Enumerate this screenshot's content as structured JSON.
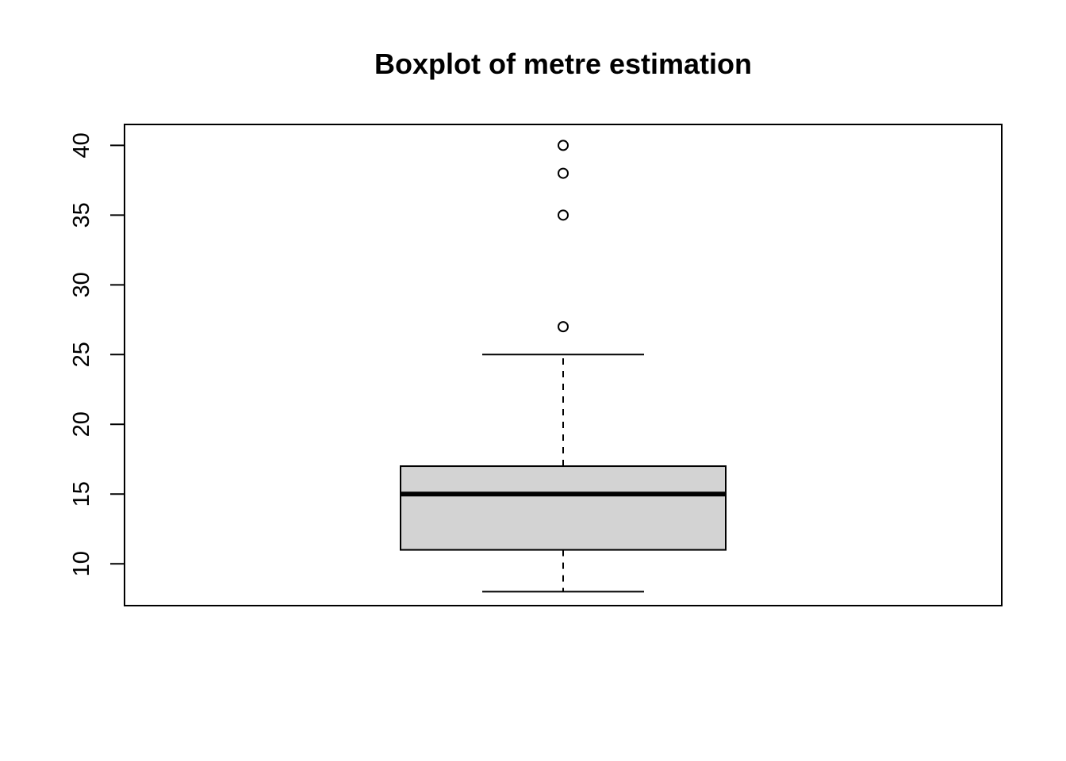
{
  "chart_data": {
    "type": "boxplot",
    "title": "Boxplot of metre estimation",
    "xlabel": "",
    "ylabel": "",
    "ylim": [
      7,
      41.5
    ],
    "yticks": [
      10,
      15,
      20,
      25,
      30,
      35,
      40
    ],
    "ytick_labels": [
      "10",
      "15",
      "20",
      "25",
      "30",
      "35",
      "40"
    ],
    "box": {
      "whisker_low": 8,
      "q1": 11,
      "median": 15,
      "q3": 17,
      "whisker_high": 25
    },
    "outliers": [
      27,
      35,
      38,
      40
    ],
    "colors": {
      "box_fill": "#d3d3d3",
      "stroke": "#000000",
      "background": "#ffffff"
    },
    "grid": false,
    "legend": "none"
  }
}
